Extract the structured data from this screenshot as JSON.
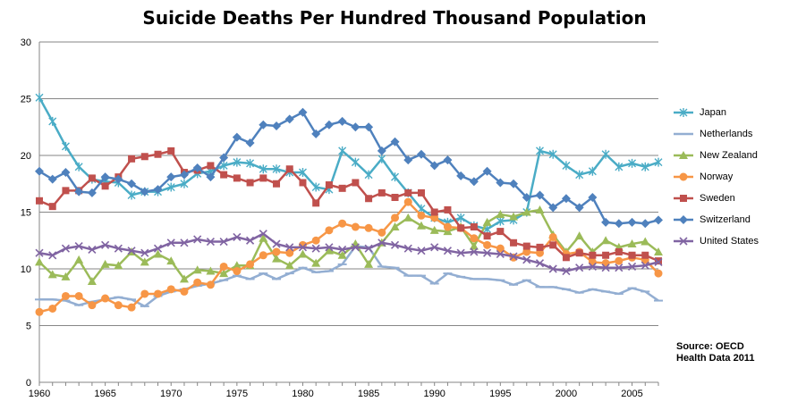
{
  "chart_data": {
    "type": "line",
    "title": "Suicide Deaths Per Hundred Thousand Population",
    "xlabel": "",
    "ylabel": "",
    "xlim": [
      1960,
      2007
    ],
    "ylim": [
      0,
      30
    ],
    "y_ticks": [
      0,
      5,
      10,
      15,
      20,
      25,
      30
    ],
    "x_ticks": [
      1960,
      1965,
      1970,
      1975,
      1980,
      1985,
      1990,
      1995,
      2000,
      2005
    ],
    "grid": true,
    "legend_position": "right",
    "x": [
      1960,
      1961,
      1962,
      1963,
      1964,
      1965,
      1966,
      1967,
      1968,
      1969,
      1970,
      1971,
      1972,
      1973,
      1974,
      1975,
      1976,
      1977,
      1978,
      1979,
      1980,
      1981,
      1982,
      1983,
      1984,
      1985,
      1986,
      1987,
      1988,
      1989,
      1990,
      1991,
      1992,
      1993,
      1994,
      1995,
      1996,
      1997,
      1998,
      1999,
      2000,
      2001,
      2002,
      2003,
      2004,
      2005,
      2006,
      2007
    ],
    "series": [
      {
        "name": "Japan",
        "color": "#4aacc6",
        "marker": "star",
        "values": [
          25.1,
          23.0,
          20.8,
          19.0,
          17.9,
          17.7,
          17.6,
          16.5,
          16.8,
          16.8,
          17.2,
          17.5,
          18.4,
          18.6,
          19.1,
          19.4,
          19.3,
          18.8,
          18.8,
          18.5,
          18.5,
          17.2,
          17.0,
          20.4,
          19.4,
          18.3,
          19.7,
          18.1,
          16.7,
          15.3,
          14.5,
          14.1,
          14.5,
          13.8,
          13.5,
          14.2,
          14.3,
          15.0,
          20.4,
          20.1,
          19.1,
          18.3,
          18.6,
          20.1,
          19.0,
          19.3,
          19.0,
          19.4
        ]
      },
      {
        "name": "Netherlands",
        "color": "#93aed2",
        "marker": "dash",
        "values": [
          7.3,
          7.3,
          7.2,
          6.8,
          7.1,
          7.3,
          7.5,
          7.3,
          6.7,
          7.6,
          8.0,
          8.2,
          8.5,
          8.7,
          9.0,
          9.4,
          9.1,
          9.6,
          9.1,
          9.6,
          10.1,
          9.7,
          9.8,
          10.4,
          12.0,
          11.9,
          10.2,
          10.1,
          9.4,
          9.4,
          8.7,
          9.6,
          9.3,
          9.1,
          9.1,
          9.0,
          8.6,
          9.0,
          8.4,
          8.4,
          8.2,
          7.9,
          8.2,
          8.0,
          7.8,
          8.3,
          8.0,
          7.2
        ]
      },
      {
        "name": "New Zealand",
        "color": "#9bbb59",
        "marker": "triangle",
        "values": [
          10.6,
          9.5,
          9.3,
          10.8,
          8.9,
          10.4,
          10.3,
          11.5,
          10.6,
          11.3,
          10.7,
          9.1,
          9.9,
          9.8,
          9.6,
          10.3,
          10.3,
          12.7,
          10.9,
          10.3,
          11.3,
          10.5,
          11.6,
          11.2,
          12.2,
          10.4,
          12.3,
          13.7,
          14.5,
          13.8,
          13.4,
          13.3,
          13.7,
          12.0,
          14.1,
          14.8,
          14.6,
          15.0,
          15.2,
          13.0,
          11.5,
          12.9,
          11.5,
          12.5,
          11.9,
          12.2,
          12.4,
          11.5
        ]
      },
      {
        "name": "Norway",
        "color": "#f79646",
        "marker": "circle",
        "values": [
          6.2,
          6.5,
          7.6,
          7.6,
          6.8,
          7.4,
          6.8,
          6.6,
          7.8,
          7.8,
          8.2,
          8.0,
          8.8,
          8.6,
          10.2,
          9.8,
          10.4,
          11.2,
          11.5,
          11.4,
          12.1,
          12.5,
          13.4,
          14.0,
          13.7,
          13.6,
          13.2,
          14.5,
          15.9,
          14.7,
          14.5,
          13.7,
          13.6,
          12.7,
          12.1,
          11.8,
          11.0,
          11.5,
          11.4,
          12.8,
          11.3,
          11.5,
          10.6,
          10.5,
          10.7,
          11.0,
          10.8,
          9.6
        ]
      },
      {
        "name": "Sweden",
        "color": "#c0504d",
        "marker": "square",
        "values": [
          16.0,
          15.5,
          16.9,
          16.9,
          18.0,
          17.3,
          18.1,
          19.7,
          19.9,
          20.1,
          20.4,
          18.5,
          18.7,
          19.1,
          18.3,
          18.0,
          17.6,
          18.0,
          17.5,
          18.8,
          17.6,
          15.8,
          17.4,
          17.1,
          17.6,
          16.2,
          16.7,
          16.3,
          16.7,
          16.7,
          15.0,
          15.2,
          13.6,
          13.7,
          12.9,
          13.3,
          12.3,
          12.0,
          11.9,
          12.1,
          11.0,
          11.4,
          11.2,
          11.2,
          11.5,
          11.2,
          11.2,
          10.7
        ]
      },
      {
        "name": "Switzerland",
        "color": "#4f81bd",
        "marker": "diamond",
        "values": [
          18.6,
          17.9,
          18.5,
          16.8,
          16.7,
          18.1,
          17.9,
          17.5,
          16.8,
          17.0,
          18.1,
          18.3,
          18.9,
          18.1,
          19.8,
          21.6,
          21.1,
          22.7,
          22.6,
          23.2,
          23.8,
          21.9,
          22.7,
          23.0,
          22.5,
          22.5,
          20.4,
          21.2,
          19.6,
          20.1,
          19.1,
          19.6,
          18.2,
          17.7,
          18.6,
          17.6,
          17.5,
          16.3,
          16.5,
          15.4,
          16.2,
          15.4,
          16.3,
          14.1,
          14.0,
          14.1,
          14.0,
          14.3
        ]
      },
      {
        "name": "United States",
        "color": "#8064a2",
        "marker": "x",
        "values": [
          11.4,
          11.2,
          11.8,
          12.0,
          11.7,
          12.1,
          11.8,
          11.6,
          11.4,
          11.8,
          12.3,
          12.3,
          12.6,
          12.4,
          12.4,
          12.8,
          12.5,
          13.1,
          12.2,
          11.9,
          11.9,
          11.8,
          11.9,
          11.7,
          11.9,
          11.8,
          12.3,
          12.1,
          11.8,
          11.6,
          11.9,
          11.6,
          11.4,
          11.5,
          11.4,
          11.3,
          11.1,
          10.8,
          10.5,
          10.0,
          9.8,
          10.1,
          10.2,
          10.1,
          10.1,
          10.2,
          10.3,
          10.6
        ]
      }
    ],
    "annotation": "Source: OECD\nHealth Data 2011"
  },
  "annotation_lines": [
    "Source: OECD",
    "Health Data 2011"
  ]
}
